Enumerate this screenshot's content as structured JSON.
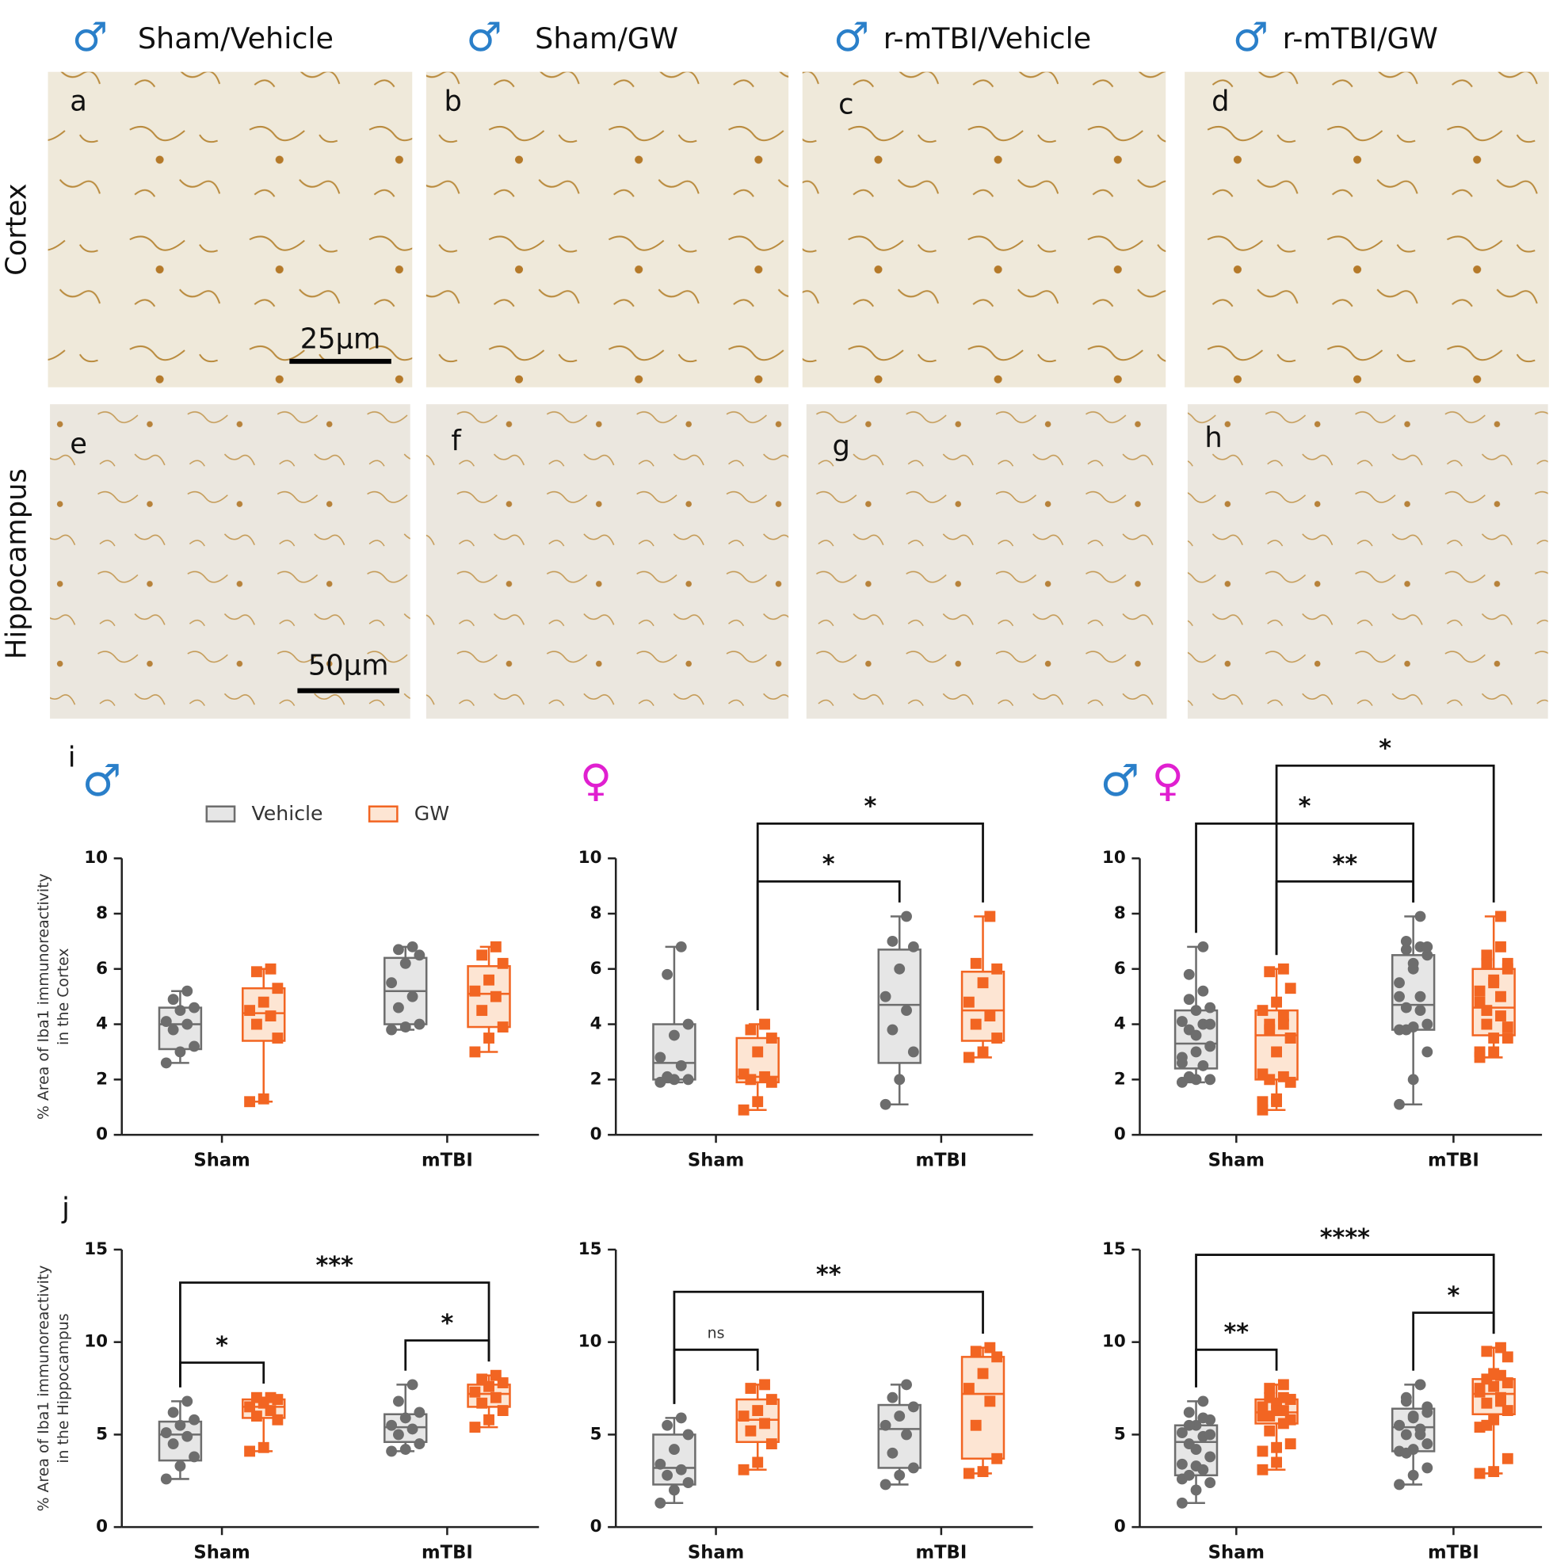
{
  "micrographs": {
    "symbol_color": "#2a7fc9",
    "columns": [
      {
        "symbol": "♂",
        "title": "Sham/Vehicle"
      },
      {
        "symbol": "♂",
        "title": "Sham/GW"
      },
      {
        "symbol": "♂",
        "title": "r-mTBI/Vehicle"
      },
      {
        "symbol": "♂",
        "title": "r-mTBI/GW"
      }
    ],
    "rows": [
      "Cortex",
      "Hippocampus"
    ],
    "panels": [
      "a",
      "b",
      "c",
      "d",
      "e",
      "f",
      "g",
      "h"
    ],
    "scale_bars": [
      "25µm",
      "50µm"
    ]
  },
  "chart_data": [
    {
      "type": "box",
      "panel": "i",
      "symbols": [
        {
          "text": "♂",
          "color": "#2a7fc9"
        }
      ],
      "ylabel": [
        "% Area of Iba1 immunoreactivity",
        "in the Cortex"
      ],
      "legend": true,
      "categories": [
        "Sham",
        "mTBI"
      ],
      "ylim": [
        0,
        10
      ],
      "yticks": [
        0,
        2,
        4,
        6,
        8,
        10
      ],
      "series": [
        {
          "name": "Vehicle",
          "color": "#6d6d6d",
          "fill": "#e6e6e6",
          "boxes": [
            {
              "min": 2.6,
              "q1": 3.1,
              "median": 4.0,
              "q3": 4.6,
              "max": 5.2,
              "points": [
                2.6,
                3.0,
                3.2,
                3.8,
                4.0,
                4.1,
                4.5,
                4.6,
                4.9,
                5.2
              ]
            },
            {
              "min": 3.8,
              "q1": 4.0,
              "median": 5.2,
              "q3": 6.4,
              "max": 6.8,
              "points": [
                3.8,
                3.9,
                4.0,
                4.6,
                5.0,
                5.5,
                6.2,
                6.5,
                6.7,
                6.8
              ]
            }
          ]
        },
        {
          "name": "GW",
          "color": "#f26522",
          "fill": "#fde5d3",
          "boxes": [
            {
              "min": 1.2,
              "q1": 3.4,
              "median": 4.4,
              "q3": 5.3,
              "max": 6.0,
              "points": [
                1.2,
                1.3,
                3.5,
                4.0,
                4.3,
                4.5,
                4.8,
                5.3,
                5.9,
                6.0
              ]
            },
            {
              "min": 3.0,
              "q1": 3.9,
              "median": 5.1,
              "q3": 6.1,
              "max": 6.8,
              "points": [
                3.0,
                3.5,
                3.9,
                4.5,
                5.0,
                5.2,
                5.6,
                6.2,
                6.5,
                6.8
              ]
            }
          ]
        }
      ],
      "significance": []
    },
    {
      "type": "box",
      "symbols": [
        {
          "text": "♀",
          "color": "#e020d0"
        }
      ],
      "categories": [
        "Sham",
        "mTBI"
      ],
      "ylim": [
        0,
        10
      ],
      "yticks": [
        0,
        2,
        4,
        6,
        8,
        10
      ],
      "series": [
        {
          "name": "Vehicle",
          "color": "#6d6d6d",
          "fill": "#e6e6e6",
          "boxes": [
            {
              "min": 1.9,
              "q1": 2.0,
              "median": 2.6,
              "q3": 4.0,
              "max": 6.8,
              "points": [
                1.9,
                2.0,
                2.0,
                2.1,
                2.5,
                2.8,
                3.6,
                4.0,
                5.8,
                6.8
              ]
            },
            {
              "min": 1.1,
              "q1": 2.6,
              "median": 4.7,
              "q3": 6.7,
              "max": 7.9,
              "points": [
                1.1,
                2.0,
                3.0,
                3.8,
                4.5,
                5.0,
                6.0,
                6.8,
                7.0,
                7.9
              ]
            }
          ]
        },
        {
          "name": "GW",
          "color": "#f26522",
          "fill": "#fde5d3",
          "boxes": [
            {
              "min": 0.9,
              "q1": 1.9,
              "median": 2.1,
              "q3": 3.5,
              "max": 4.0,
              "points": [
                0.9,
                1.2,
                1.9,
                2.0,
                2.1,
                2.2,
                3.0,
                3.5,
                3.8,
                4.0
              ]
            },
            {
              "min": 2.8,
              "q1": 3.4,
              "median": 4.5,
              "q3": 5.9,
              "max": 7.9,
              "points": [
                2.8,
                3.0,
                3.5,
                4.0,
                4.3,
                4.8,
                5.5,
                6.0,
                6.2,
                7.9
              ]
            }
          ]
        }
      ],
      "significance": [
        {
          "label": "*",
          "from": 1,
          "to": 2
        },
        {
          "label": "*",
          "from": 1,
          "to": 3
        }
      ]
    },
    {
      "type": "box",
      "symbols": [
        {
          "text": "♂",
          "color": "#2a7fc9"
        },
        {
          "text": "♀",
          "color": "#e020d0"
        }
      ],
      "categories": [
        "Sham",
        "mTBI"
      ],
      "ylim": [
        0,
        10
      ],
      "yticks": [
        0,
        2,
        4,
        6,
        8,
        10
      ],
      "series": [
        {
          "name": "Vehicle",
          "color": "#6d6d6d",
          "fill": "#e6e6e6",
          "boxes": [
            {
              "min": 1.9,
              "q1": 2.4,
              "median": 3.3,
              "q3": 4.5,
              "max": 6.8,
              "points": [
                2.6,
                3.0,
                3.2,
                3.8,
                4.0,
                4.1,
                4.5,
                4.6,
                4.9,
                5.2,
                1.9,
                2.0,
                2.0,
                2.1,
                2.5,
                2.8,
                3.6,
                4.0,
                5.8,
                6.8
              ]
            },
            {
              "min": 1.1,
              "q1": 3.8,
              "median": 4.7,
              "q3": 6.5,
              "max": 7.9,
              "points": [
                3.8,
                3.9,
                4.0,
                4.6,
                5.0,
                5.5,
                6.2,
                6.5,
                6.7,
                6.8,
                1.1,
                2.0,
                3.0,
                3.8,
                4.5,
                5.0,
                6.0,
                6.8,
                7.0,
                7.9
              ]
            }
          ]
        },
        {
          "name": "GW",
          "color": "#f26522",
          "fill": "#fde5d3",
          "boxes": [
            {
              "min": 0.9,
              "q1": 2.0,
              "median": 3.6,
              "q3": 4.5,
              "max": 6.0,
              "points": [
                1.2,
                1.3,
                3.5,
                4.0,
                4.3,
                4.5,
                4.8,
                5.3,
                5.9,
                6.0,
                0.9,
                1.2,
                1.9,
                2.0,
                2.1,
                2.2,
                3.0,
                3.5,
                3.8,
                4.0
              ]
            },
            {
              "min": 2.8,
              "q1": 3.6,
              "median": 4.6,
              "q3": 6.0,
              "max": 7.9,
              "points": [
                3.0,
                3.5,
                3.9,
                4.5,
                5.0,
                5.2,
                5.6,
                6.2,
                6.5,
                6.8,
                2.8,
                3.0,
                3.5,
                4.0,
                4.3,
                4.8,
                5.5,
                6.0,
                6.2,
                7.9
              ]
            }
          ]
        }
      ],
      "significance": [
        {
          "label": "**",
          "from": 1,
          "to": 2
        },
        {
          "label": "*",
          "from": 0,
          "to": 2
        },
        {
          "label": "*",
          "from": 1,
          "to": 3
        }
      ]
    },
    {
      "type": "box",
      "panel": "j",
      "ylabel": [
        "% Area of Iba1 immunoreactivity",
        "in the Hippocampus"
      ],
      "categories": [
        "Sham",
        "mTBI"
      ],
      "ylim": [
        0,
        15
      ],
      "yticks": [
        0,
        5,
        10,
        15
      ],
      "series": [
        {
          "name": "Vehicle",
          "color": "#6d6d6d",
          "fill": "#e6e6e6",
          "boxes": [
            {
              "min": 2.6,
              "q1": 3.6,
              "median": 5.0,
              "q3": 5.7,
              "max": 6.8,
              "points": [
                2.6,
                3.3,
                3.8,
                4.5,
                4.9,
                5.1,
                5.5,
                5.8,
                6.2,
                6.8
              ]
            },
            {
              "min": 4.1,
              "q1": 4.6,
              "median": 5.4,
              "q3": 6.1,
              "max": 7.7,
              "points": [
                4.1,
                4.2,
                4.5,
                5.0,
                5.3,
                5.5,
                5.9,
                6.2,
                6.8,
                7.7
              ]
            }
          ]
        },
        {
          "name": "GW",
          "color": "#f26522",
          "fill": "#fde5d3",
          "boxes": [
            {
              "min": 4.1,
              "q1": 5.9,
              "median": 6.5,
              "q3": 6.9,
              "max": 7.0,
              "points": [
                4.1,
                4.3,
                5.8,
                6.0,
                6.3,
                6.5,
                6.7,
                6.9,
                7.0,
                7.0
              ]
            },
            {
              "min": 5.4,
              "q1": 6.5,
              "median": 7.2,
              "q3": 7.7,
              "max": 8.2,
              "points": [
                5.4,
                5.8,
                6.3,
                6.7,
                7.0,
                7.3,
                7.6,
                7.8,
                8.0,
                8.2
              ]
            }
          ]
        }
      ],
      "significance": [
        {
          "label": "*",
          "from": 0,
          "to": 1
        },
        {
          "label": "*",
          "from": 2,
          "to": 3
        },
        {
          "label": "***",
          "from": 0,
          "to": 3
        }
      ]
    },
    {
      "type": "box",
      "categories": [
        "Sham",
        "mTBI"
      ],
      "ylim": [
        0,
        15
      ],
      "yticks": [
        0,
        5,
        10,
        15
      ],
      "series": [
        {
          "name": "Vehicle",
          "color": "#6d6d6d",
          "fill": "#e6e6e6",
          "boxes": [
            {
              "min": 1.3,
              "q1": 2.3,
              "median": 3.2,
              "q3": 5.0,
              "max": 5.9,
              "points": [
                1.3,
                2.0,
                2.4,
                2.8,
                3.1,
                3.4,
                4.2,
                5.0,
                5.5,
                5.9
              ]
            },
            {
              "min": 2.3,
              "q1": 3.2,
              "median": 5.3,
              "q3": 6.6,
              "max": 7.7,
              "points": [
                2.3,
                2.8,
                3.2,
                4.0,
                5.0,
                5.5,
                6.0,
                6.5,
                7.0,
                7.7
              ]
            }
          ]
        },
        {
          "name": "GW",
          "color": "#f26522",
          "fill": "#fde5d3",
          "boxes": [
            {
              "min": 3.1,
              "q1": 4.6,
              "median": 5.8,
              "q3": 6.9,
              "max": 7.7,
              "points": [
                3.1,
                3.5,
                4.5,
                5.2,
                5.6,
                6.0,
                6.3,
                6.9,
                7.5,
                7.7
              ]
            },
            {
              "min": 2.9,
              "q1": 3.7,
              "median": 7.2,
              "q3": 9.2,
              "max": 9.7,
              "points": [
                2.9,
                3.0,
                3.7,
                5.5,
                6.8,
                7.5,
                8.3,
                9.2,
                9.5,
                9.7
              ]
            }
          ]
        }
      ],
      "significance": [
        {
          "label": "ns",
          "from": 0,
          "to": 1
        },
        {
          "label": "**",
          "from": 0,
          "to": 3
        }
      ]
    },
    {
      "type": "box",
      "categories": [
        "Sham",
        "mTBI"
      ],
      "ylim": [
        0,
        15
      ],
      "yticks": [
        0,
        5,
        10,
        15
      ],
      "series": [
        {
          "name": "Vehicle",
          "color": "#6d6d6d",
          "fill": "#e6e6e6",
          "boxes": [
            {
              "min": 1.3,
              "q1": 2.8,
              "median": 4.6,
              "q3": 5.5,
              "max": 6.8,
              "points": [
                2.6,
                3.3,
                3.8,
                4.5,
                4.9,
                5.1,
                5.5,
                5.8,
                6.2,
                6.8,
                1.3,
                2.0,
                2.4,
                2.8,
                3.1,
                3.4,
                4.2,
                5.0,
                5.5,
                5.9
              ]
            },
            {
              "min": 2.3,
              "q1": 4.1,
              "median": 5.4,
              "q3": 6.4,
              "max": 7.7,
              "points": [
                4.1,
                4.2,
                4.5,
                5.0,
                5.3,
                5.5,
                5.9,
                6.2,
                6.8,
                7.7,
                2.3,
                2.8,
                3.2,
                4.0,
                5.0,
                5.5,
                6.0,
                6.5,
                7.0,
                7.7
              ]
            }
          ]
        },
        {
          "name": "GW",
          "color": "#f26522",
          "fill": "#fde5d3",
          "boxes": [
            {
              "min": 3.1,
              "q1": 5.6,
              "median": 6.2,
              "q3": 6.9,
              "max": 7.7,
              "points": [
                4.1,
                4.3,
                5.8,
                6.0,
                6.3,
                6.5,
                6.7,
                6.9,
                7.0,
                7.0,
                3.1,
                3.5,
                4.5,
                5.2,
                5.6,
                6.0,
                6.3,
                6.9,
                7.5,
                7.7
              ]
            },
            {
              "min": 2.9,
              "q1": 6.1,
              "median": 7.2,
              "q3": 8.0,
              "max": 9.7,
              "points": [
                5.4,
                5.8,
                6.3,
                6.7,
                7.0,
                7.3,
                7.6,
                7.8,
                8.0,
                8.2,
                2.9,
                3.0,
                3.7,
                5.5,
                6.8,
                7.5,
                8.3,
                9.2,
                9.5,
                9.7
              ]
            }
          ]
        }
      ],
      "significance": [
        {
          "label": "**",
          "from": 0,
          "to": 1
        },
        {
          "label": "*",
          "from": 2,
          "to": 3
        },
        {
          "label": "****",
          "from": 0,
          "to": 3
        }
      ]
    }
  ]
}
